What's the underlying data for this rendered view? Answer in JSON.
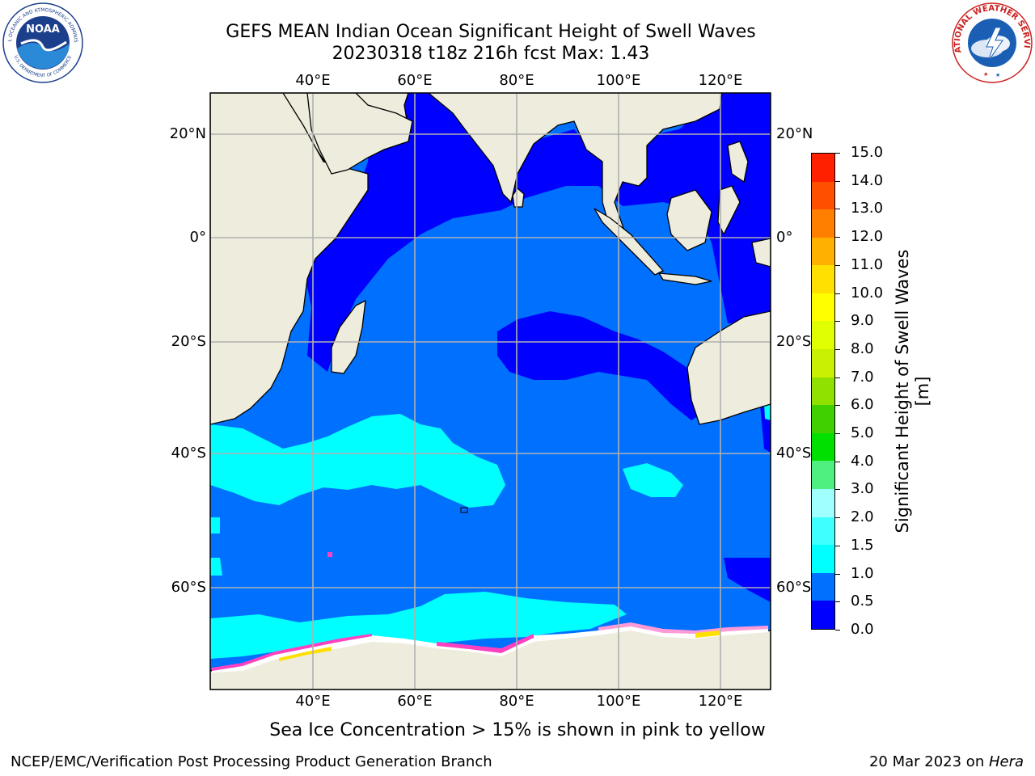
{
  "title": {
    "line1": "GEFS MEAN Indian Ocean Significant Height of Swell Waves",
    "line2": "20230318 t18z 216h fcst   Max: 1.43"
  },
  "logos": {
    "left": "noaa-logo",
    "left_ring_text": "NATIONAL OCEANIC AND ATMOSPHERIC ADMINISTRATION",
    "left_ring_text_bottom": "U.S. DEPARTMENT OF COMMERCE",
    "left_center_text": "NOAA",
    "right": "nws-logo",
    "right_ring_text": "NATIONAL WEATHER SERVICE"
  },
  "map": {
    "lon_ticks": [
      "40°E",
      "60°E",
      "80°E",
      "100°E",
      "120°E"
    ],
    "lat_ticks": [
      "20°N",
      "0°",
      "20°S",
      "40°S",
      "60°S"
    ],
    "colors": {
      "land": "#eeecdc",
      "sea_ice_white": "#ffffff",
      "grid": "#b0b0b0"
    }
  },
  "colorbar": {
    "label": "Significant Height of Swell Waves [m]",
    "ticks": [
      "0.0",
      "0.5",
      "1.0",
      "1.5",
      "2.0",
      "3.0",
      "4.0",
      "5.0",
      "6.0",
      "7.0",
      "8.0",
      "9.0",
      "10.0",
      "11.0",
      "12.0",
      "13.0",
      "14.0",
      "15.0"
    ],
    "colors": [
      "#0000ff",
      "#0070ff",
      "#00ffff",
      "#40ffff",
      "#a0ffff",
      "#50f080",
      "#00e000",
      "#40d000",
      "#90e000",
      "#c8f000",
      "#e0ff00",
      "#ffff00",
      "#ffe000",
      "#ffb000",
      "#ff8000",
      "#ff5000",
      "#ff2000"
    ]
  },
  "footnote": "Sea Ice Concentration > 15% is shown in pink to yellow",
  "credit": "NCEP/EMC/Verification Post Processing Product Generation Branch",
  "date": {
    "text": "20 Mar 2023 on ",
    "host": "Hera"
  }
}
